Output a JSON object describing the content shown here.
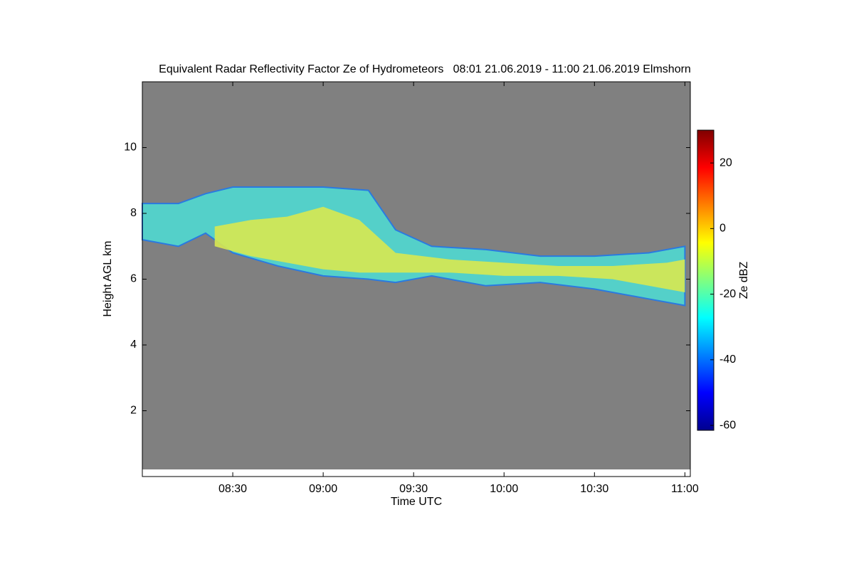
{
  "chart_data": {
    "type": "time-height",
    "title": "Equivalent Radar Reflectivity Factor Ze of Hydrometeors   08:01 21.06.2019 - 11:00 21.06.2019 Elmshorn",
    "xlabel": "Time UTC",
    "ylabel": "Height AGL km",
    "colorbar_label": "Ze dBZ",
    "background": "#808080",
    "xlim": [
      8.0,
      11.03
    ],
    "xticks": [
      {
        "value": 8.5,
        "label": "08:30"
      },
      {
        "value": 9.0,
        "label": "09:00"
      },
      {
        "value": 9.5,
        "label": "09:30"
      },
      {
        "value": 10.0,
        "label": "10:00"
      },
      {
        "value": 10.5,
        "label": "10:30"
      },
      {
        "value": 11.0,
        "label": "11:00"
      }
    ],
    "ylim": [
      0,
      12
    ],
    "yticks": [
      2,
      4,
      6,
      8,
      10
    ],
    "clim": [
      -61.5,
      30
    ],
    "cticks": [
      -60,
      -40,
      -20,
      0,
      20
    ],
    "colormap": [
      "#00008f",
      "#0000ff",
      "#0080ff",
      "#00ffff",
      "#80ff80",
      "#ffff00",
      "#ff8000",
      "#ff0000",
      "#800000"
    ],
    "layers": [
      {
        "color": "#4fd8d0",
        "x": [
          8.0,
          8.2,
          8.35,
          8.5,
          8.75,
          9.0,
          9.25,
          9.4,
          9.6,
          9.9,
          10.2,
          10.5,
          10.8,
          11.0
        ],
        "top": [
          8.3,
          8.3,
          8.6,
          8.8,
          8.8,
          8.8,
          8.7,
          7.5,
          7.0,
          6.9,
          6.7,
          6.7,
          6.8,
          7.0
        ],
        "base": [
          7.2,
          7.0,
          7.4,
          6.8,
          6.4,
          6.1,
          6.0,
          5.9,
          6.1,
          5.8,
          5.9,
          5.7,
          5.4,
          5.2
        ]
      },
      {
        "color": "#d8e850",
        "x": [
          8.4,
          8.6,
          8.8,
          9.0,
          9.2,
          9.4,
          9.7,
          10.0,
          10.3,
          10.6,
          10.9,
          11.0
        ],
        "top": [
          7.6,
          7.8,
          7.9,
          8.2,
          7.8,
          6.8,
          6.6,
          6.5,
          6.4,
          6.4,
          6.5,
          6.6
        ],
        "base": [
          7.0,
          6.7,
          6.5,
          6.3,
          6.2,
          6.2,
          6.2,
          6.1,
          6.1,
          6.0,
          5.7,
          5.6
        ]
      }
    ]
  }
}
